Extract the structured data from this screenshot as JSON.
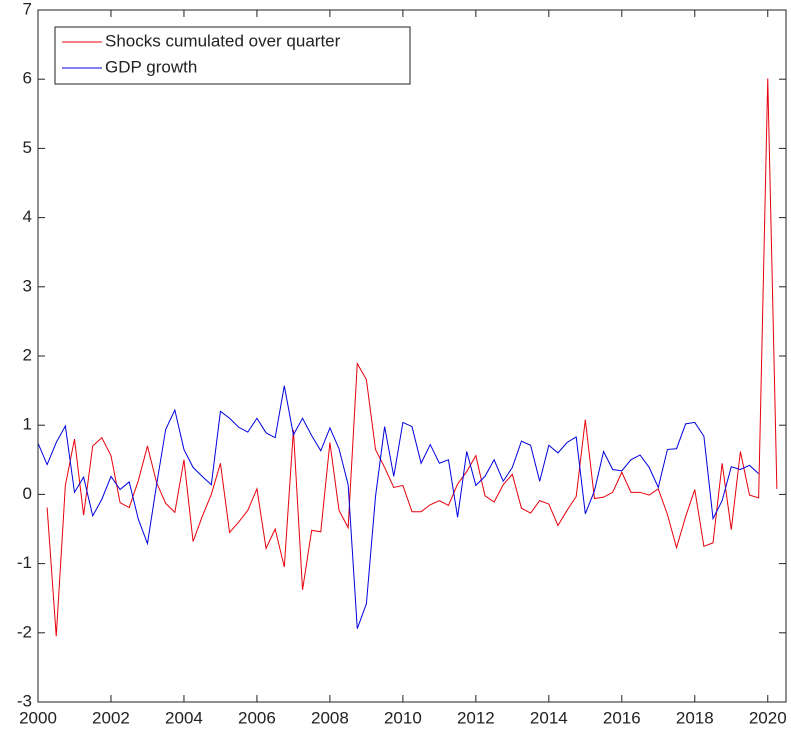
{
  "chart_data": {
    "type": "line",
    "x": [
      2000,
      2000.25,
      2000.5,
      2000.75,
      2001,
      2001.25,
      2001.5,
      2001.75,
      2002,
      2002.25,
      2002.5,
      2002.75,
      2003,
      2003.25,
      2003.5,
      2003.75,
      2004,
      2004.25,
      2004.5,
      2004.75,
      2005,
      2005.25,
      2005.5,
      2005.75,
      2006,
      2006.25,
      2006.5,
      2006.75,
      2007,
      2007.25,
      2007.5,
      2007.75,
      2008,
      2008.25,
      2008.5,
      2008.75,
      2009,
      2009.25,
      2009.5,
      2009.75,
      2010,
      2010.25,
      2010.5,
      2010.75,
      2011,
      2011.25,
      2011.5,
      2011.75,
      2012,
      2012.25,
      2012.5,
      2012.75,
      2013,
      2013.25,
      2013.5,
      2013.75,
      2014,
      2014.25,
      2014.5,
      2014.75,
      2015,
      2015.25,
      2015.5,
      2015.75,
      2016,
      2016.25,
      2016.5,
      2016.75,
      2017,
      2017.25,
      2017.5,
      2017.75,
      2018,
      2018.25,
      2018.5,
      2018.75,
      2019,
      2019.25,
      2019.5,
      2019.75,
      2020,
      2020.25
    ],
    "series": [
      {
        "name": "Shocks cumulated over quarter",
        "color": "#e8000b",
        "values": [
          null,
          -0.19,
          -2.05,
          0.13,
          0.8,
          -0.3,
          0.7,
          0.82,
          0.56,
          -0.12,
          -0.19,
          0.2,
          0.7,
          0.17,
          -0.13,
          -0.26,
          0.5,
          -0.68,
          -0.32,
          0.0,
          0.45,
          -0.55,
          -0.4,
          -0.23,
          0.08,
          -0.78,
          -0.5,
          -1.05,
          0.93,
          -1.38,
          -0.52,
          -0.54,
          0.75,
          -0.23,
          -0.48,
          1.89,
          1.66,
          0.65,
          0.39,
          0.1,
          0.13,
          -0.25,
          -0.25,
          -0.15,
          -0.09,
          -0.16,
          0.15,
          0.33,
          0.56,
          -0.02,
          -0.11,
          0.14,
          0.29,
          -0.2,
          -0.27,
          -0.09,
          -0.14,
          -0.45,
          -0.23,
          -0.03,
          1.08,
          -0.06,
          -0.04,
          0.03,
          0.32,
          0.03,
          0.03,
          -0.01,
          0.08,
          -0.29,
          -0.77,
          -0.32,
          0.07,
          -0.75,
          -0.7,
          0.45,
          -0.51,
          0.62,
          -0.01,
          -0.05,
          6.01,
          0.08
        ]
      },
      {
        "name": "GDP growth",
        "color": "#0000e0",
        "values": [
          0.74,
          0.43,
          0.75,
          0.99,
          0.03,
          0.25,
          -0.31,
          -0.07,
          0.26,
          0.07,
          0.18,
          -0.36,
          -0.71,
          0.14,
          0.94,
          1.22,
          0.65,
          0.39,
          0.26,
          0.14,
          1.2,
          1.1,
          0.97,
          0.9,
          1.1,
          0.89,
          0.82,
          1.57,
          0.86,
          1.1,
          0.85,
          0.63,
          0.96,
          0.66,
          0.14,
          -1.94,
          -1.58,
          -0.03,
          0.98,
          0.26,
          1.04,
          0.98,
          0.45,
          0.72,
          0.45,
          0.5,
          -0.33,
          0.62,
          0.13,
          0.26,
          0.5,
          0.19,
          0.39,
          0.77,
          0.71,
          0.19,
          0.71,
          0.6,
          0.75,
          0.83,
          -0.28,
          0.05,
          0.62,
          0.36,
          0.34,
          0.5,
          0.57,
          0.39,
          0.1,
          0.65,
          0.66,
          1.02,
          1.04,
          0.84,
          -0.35,
          -0.09,
          0.4,
          0.36,
          0.42,
          0.3,
          null,
          null
        ]
      }
    ],
    "xlim": [
      2000,
      2020.5
    ],
    "xticks": [
      2000,
      2002,
      2004,
      2006,
      2008,
      2010,
      2012,
      2014,
      2016,
      2018,
      2020
    ],
    "ylim": [
      -3,
      7
    ],
    "yticks": [
      -3,
      -2,
      -1,
      0,
      1,
      2,
      3,
      4,
      5,
      6,
      7
    ],
    "grid": false,
    "legend": "northwest"
  }
}
